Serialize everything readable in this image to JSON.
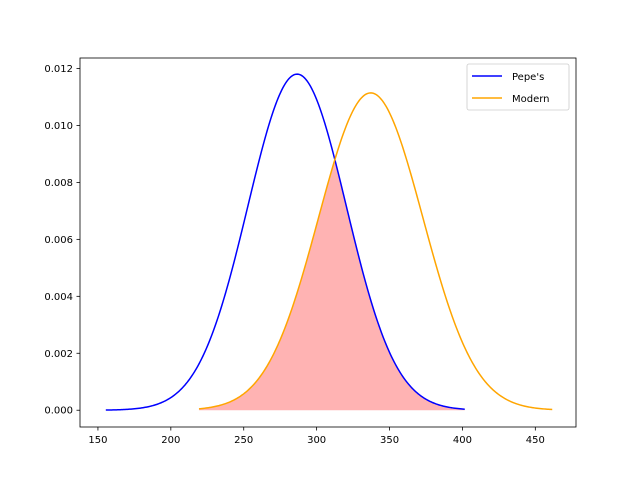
{
  "chart_data": {
    "type": "line",
    "title": "",
    "xlabel": "",
    "ylabel": "",
    "xlim": [
      137.7,
      477.9
    ],
    "ylim": [
      -0.000589,
      0.012369
    ],
    "xticks": [
      150,
      200,
      250,
      300,
      350,
      400,
      450
    ],
    "yticks": [
      0.0,
      0.002,
      0.004,
      0.006,
      0.008,
      0.01,
      0.012
    ],
    "ytick_labels": [
      "0.000",
      "0.002",
      "0.004",
      "0.006",
      "0.008",
      "0.010",
      "0.012"
    ],
    "grid": false,
    "legend_position": "top-right",
    "series": [
      {
        "name": "Pepe's",
        "distribution": "normal",
        "mean": 286.6,
        "sd": 33.8,
        "x_range": [
          155.4,
          401.6
        ],
        "color": "#0000ff"
      },
      {
        "name": "Modern",
        "distribution": "normal",
        "mean": 337.1,
        "sd": 35.8,
        "x_range": [
          219.3,
          461.6
        ],
        "color": "#ffa500"
      }
    ],
    "shaded_region": {
      "description": "overlap of both curves",
      "x_range": [
        219.3,
        401.6
      ],
      "color": "#ffb3b3"
    }
  }
}
